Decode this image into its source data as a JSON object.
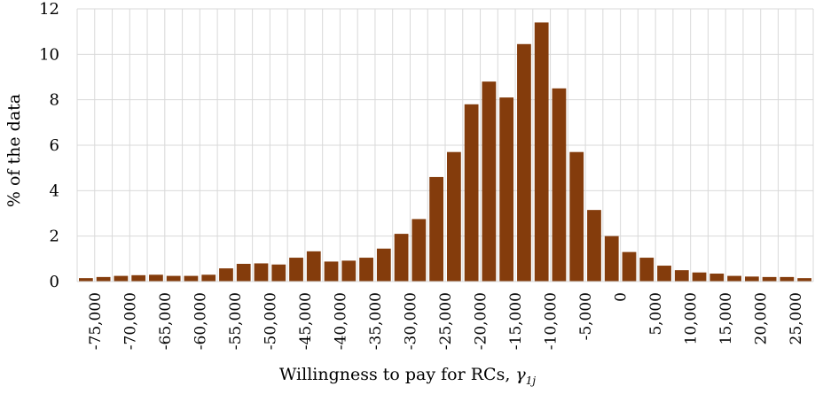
{
  "chart_data": {
    "type": "bar",
    "xlabel": "Willingness to pay for RCs,",
    "xlabel_symbol": "γ",
    "xlabel_subscript": "1j",
    "ylabel": "% of the data",
    "ylim": [
      0,
      12
    ],
    "yticks": [
      "0",
      "2",
      "4",
      "6",
      "8",
      "10",
      "12"
    ],
    "grid": "on",
    "bar_color": "#843C0C",
    "grid_color": "#D9D9D9",
    "categories": [
      -76250,
      -73750,
      -71250,
      -68750,
      -66250,
      -63750,
      -61250,
      -58750,
      -56250,
      -53750,
      -51250,
      -48750,
      -46250,
      -43750,
      -41250,
      -38750,
      -36250,
      -33750,
      -31250,
      -28750,
      -26250,
      -23750,
      -21250,
      -18750,
      -16250,
      -13750,
      -11250,
      -8750,
      -6250,
      -3750,
      -1250,
      1250,
      3750,
      6250,
      8750,
      11250,
      13750,
      16250,
      18750,
      21250,
      23750,
      26250
    ],
    "values": [
      0.15,
      0.2,
      0.25,
      0.28,
      0.3,
      0.25,
      0.25,
      0.3,
      0.58,
      0.78,
      0.8,
      0.75,
      1.05,
      1.33,
      0.88,
      0.92,
      1.05,
      1.45,
      2.1,
      2.75,
      4.6,
      5.7,
      7.8,
      8.8,
      8.1,
      10.45,
      11.4,
      8.5,
      5.7,
      3.15,
      2.0,
      1.3,
      1.05,
      0.7,
      0.5,
      0.4,
      0.35,
      0.25,
      0.22,
      0.2,
      0.2,
      0.15
    ],
    "xtick_labels": [
      "-75,000",
      "-70,000",
      "-65,000",
      "-60,000",
      "-55,000",
      "-50,000",
      "-45,000",
      "-40,000",
      "-35,000",
      "-30,000",
      "-25,000",
      "-20,000",
      "-15,000",
      "-10,000",
      "-5,000",
      "0",
      "5,000",
      "10,000",
      "15,000",
      "20,000",
      "25,000"
    ]
  }
}
